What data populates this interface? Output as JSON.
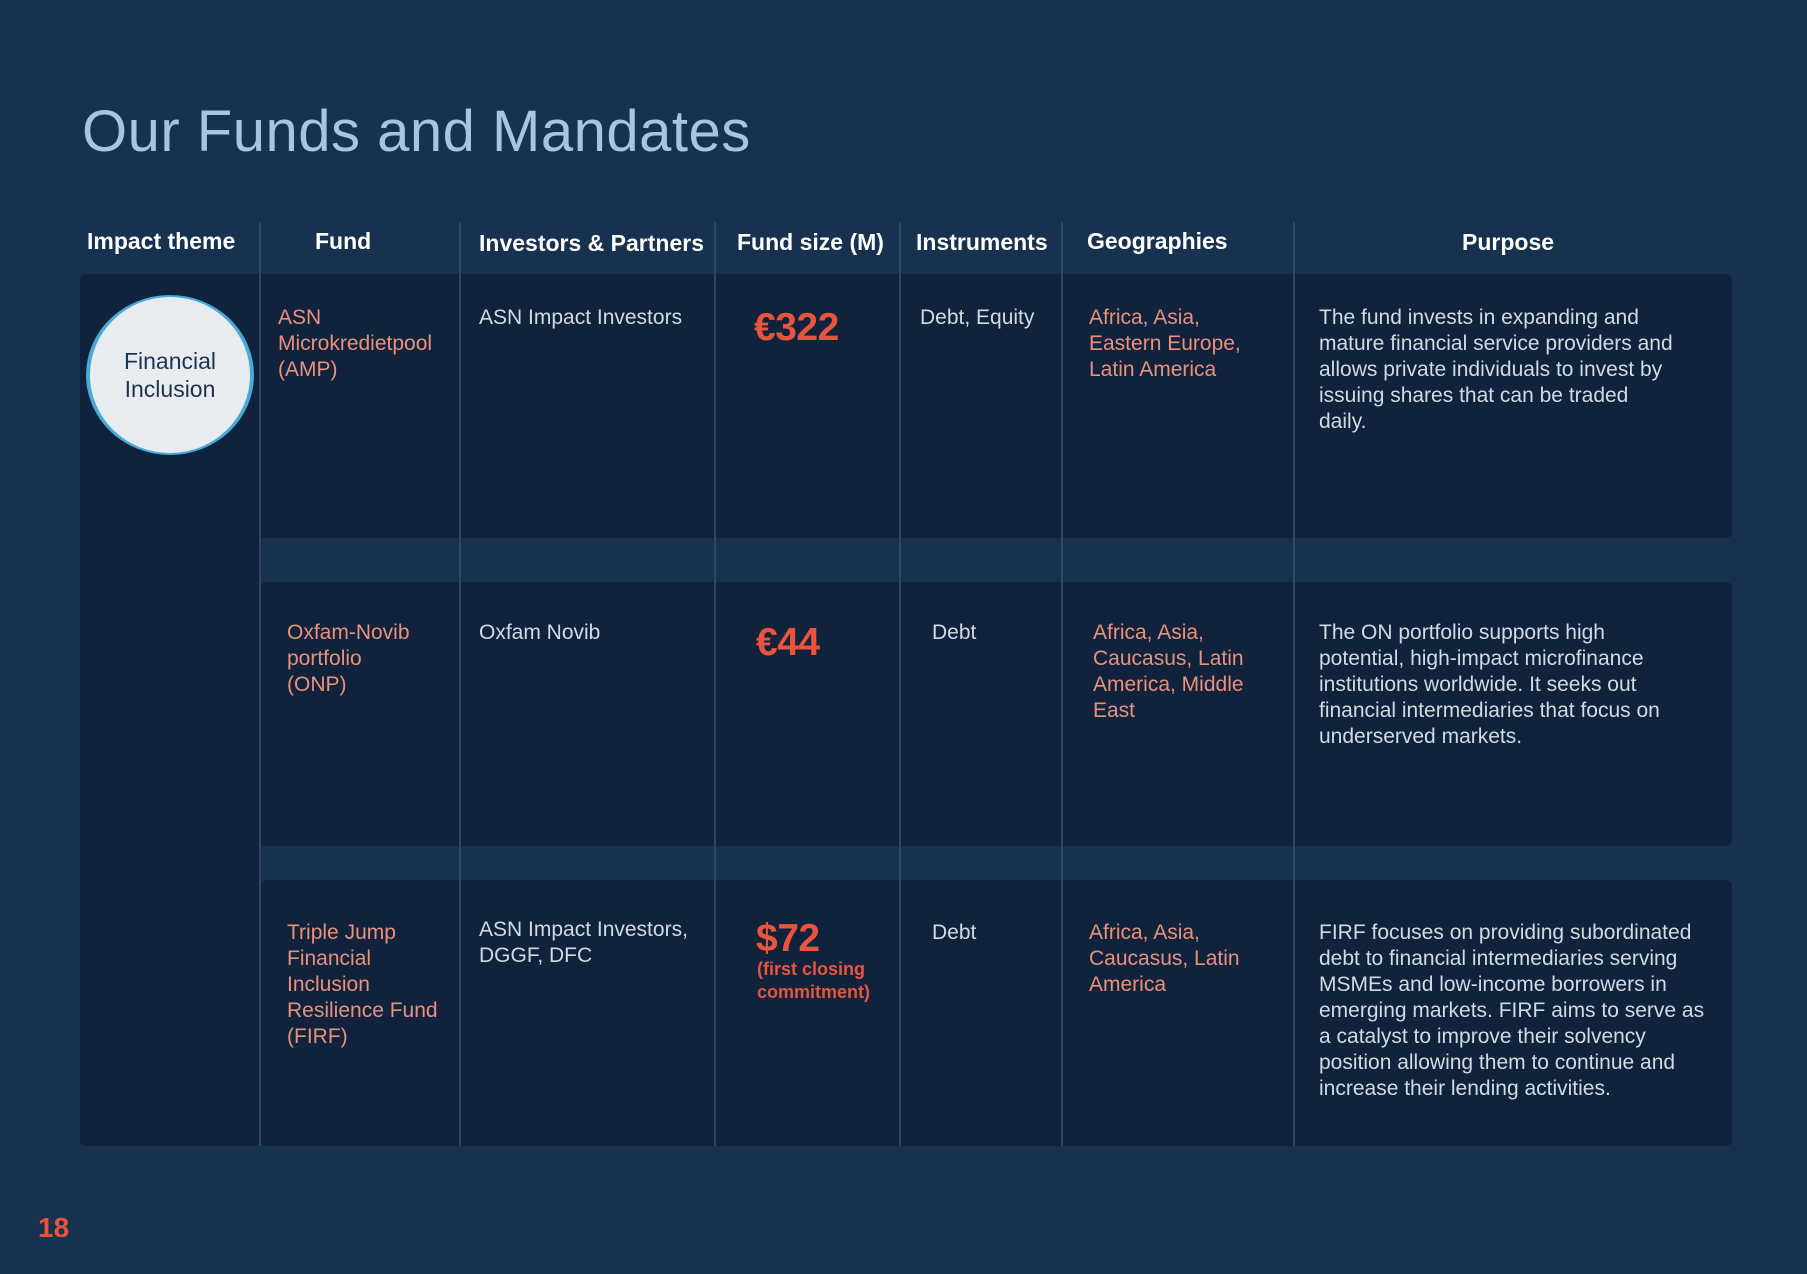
{
  "page": {
    "title": "Our Funds and Mandates",
    "page_number": "18"
  },
  "colors": {
    "background": "#17324f",
    "panel": "#10223c",
    "accent": "#e8553c",
    "salmon_text": "#e9927b",
    "badge_ring": "#46a9d6"
  },
  "table": {
    "headers": {
      "impact_theme": "Impact theme",
      "fund": "Fund",
      "investors": "Investors & Partners",
      "fund_size": "Fund size (M)",
      "instruments": "Instruments",
      "geographies": "Geographies",
      "purpose": "Purpose"
    },
    "impact_theme": [
      "Financial",
      "Inclusion"
    ],
    "rows": [
      {
        "fund": [
          "ASN",
          "Microkredietpool",
          "(AMP)"
        ],
        "investors": [
          "ASN Impact Investors"
        ],
        "size": "€322",
        "size_note": [],
        "instruments": "Debt, Equity",
        "geographies": [
          "Africa, Asia,",
          "Eastern Europe,",
          "Latin America"
        ],
        "purpose": [
          "The fund invests in expanding and",
          "mature financial service providers and",
          "allows private individuals to invest by",
          "issuing shares that can be traded",
          "daily."
        ]
      },
      {
        "fund": [
          "Oxfam-Novib",
          "portfolio",
          "(ONP)"
        ],
        "investors": [
          "Oxfam Novib"
        ],
        "size": "€44",
        "size_note": [],
        "instruments": "Debt",
        "geographies": [
          "Africa, Asia,",
          "Caucasus, Latin",
          "America, Middle",
          "East"
        ],
        "purpose": [
          "The ON portfolio supports high",
          "potential, high-impact microfinance",
          "institutions worldwide. It seeks out",
          "financial intermediaries that focus on",
          "underserved markets."
        ]
      },
      {
        "fund": [
          "Triple Jump",
          "Financial",
          "Inclusion",
          "Resilience Fund",
          "(FIRF)"
        ],
        "investors": [
          "ASN Impact Investors,",
          "DGGF, DFC"
        ],
        "size": "$72",
        "size_note": [
          "(first closing",
          "commitment)"
        ],
        "instruments": "Debt",
        "geographies": [
          "Africa, Asia,",
          "Caucasus, Latin",
          "America"
        ],
        "purpose": [
          "FIRF focuses on providing subordinated",
          "debt to financial intermediaries serving",
          "MSMEs and low-income borrowers in",
          "emerging markets. FIRF aims to serve as",
          "a catalyst to improve their solvency",
          "position allowing them to continue and",
          "increase their lending activities."
        ]
      }
    ]
  }
}
